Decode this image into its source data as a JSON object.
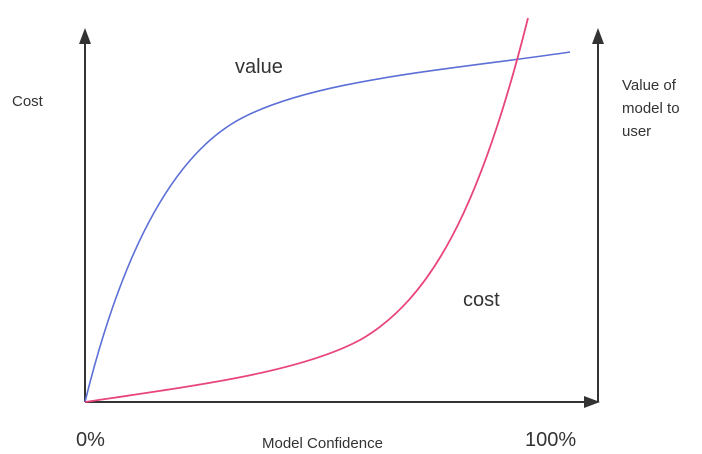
{
  "diagram": {
    "y_left_label": "Cost",
    "y_right_label": [
      "Value of",
      "model to",
      "user"
    ],
    "x_label": "Model Confidence",
    "x_start": "0%",
    "x_end": "100%",
    "curves": [
      {
        "label": "value"
      },
      {
        "label": "cost"
      }
    ]
  }
}
